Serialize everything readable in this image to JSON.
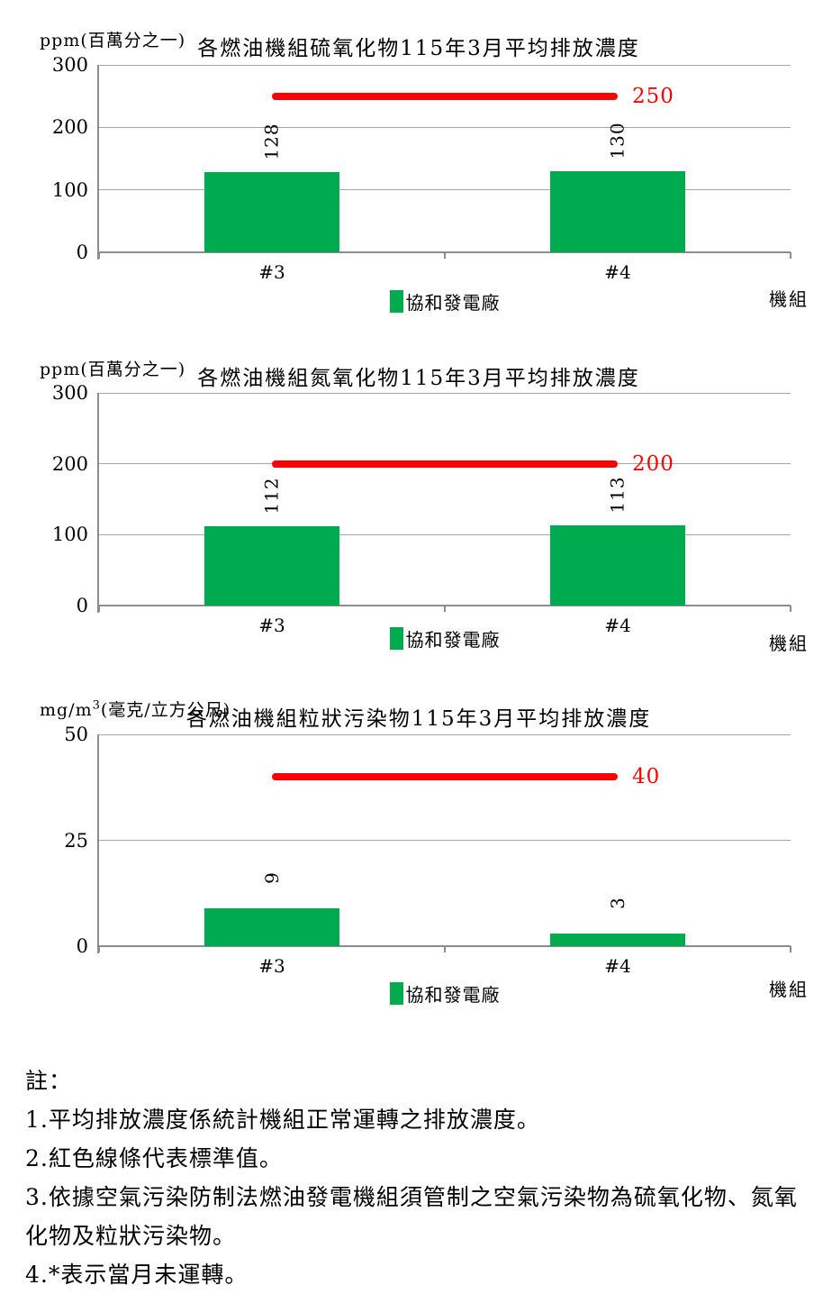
{
  "colors": {
    "bar_fill": "#00AB50",
    "standard_line": "#FF0000",
    "grid_line": "#A6A6A6",
    "axis_line": "#8C8C8C",
    "text": "#000000"
  },
  "chart_data": [
    {
      "type": "bar",
      "title": "各燃油機組硫氧化物115年3月平均排放濃度",
      "unit": {
        "pre": "ppm",
        "sup": "",
        "post": "(百萬分之一)"
      },
      "categories": [
        "#3",
        "#4"
      ],
      "series": [
        {
          "name": "協和發電廠",
          "values": [
            128,
            130
          ]
        }
      ],
      "value_labels": [
        "128",
        "130"
      ],
      "standard_line": {
        "value": 250,
        "label": "250"
      },
      "y_ticks": [
        0,
        100,
        200,
        300
      ],
      "ylim": [
        0,
        300
      ],
      "xlabel": "機組",
      "legend": {
        "name": "協和發電廠",
        "position": "bottom-center"
      },
      "grid": true
    },
    {
      "type": "bar",
      "title": "各燃油機組氮氧化物115年3月平均排放濃度",
      "unit": {
        "pre": "ppm",
        "sup": "",
        "post": "(百萬分之一)"
      },
      "categories": [
        "#3",
        "#4"
      ],
      "series": [
        {
          "name": "協和發電廠",
          "values": [
            112,
            113
          ]
        }
      ],
      "value_labels": [
        "112",
        "113"
      ],
      "standard_line": {
        "value": 200,
        "label": "200"
      },
      "y_ticks": [
        0,
        100,
        200,
        300
      ],
      "ylim": [
        0,
        300
      ],
      "xlabel": "機組",
      "legend": {
        "name": "協和發電廠",
        "position": "bottom-center"
      },
      "grid": true
    },
    {
      "type": "bar",
      "title": "各燃油機組粒狀污染物115年3月平均排放濃度",
      "unit": {
        "pre": "mg/m",
        "sup": "3",
        "post": "(毫克/立方公尺)"
      },
      "categories": [
        "#3",
        "#4"
      ],
      "series": [
        {
          "name": "協和發電廠",
          "values": [
            9,
            3
          ]
        }
      ],
      "value_labels": [
        "9",
        "3"
      ],
      "standard_line": {
        "value": 40,
        "label": "40"
      },
      "y_ticks": [
        0,
        25,
        50
      ],
      "ylim": [
        0,
        50
      ],
      "xlabel": "機組",
      "legend": {
        "name": "協和發電廠",
        "position": "bottom-center"
      },
      "grid": true
    }
  ],
  "notes": {
    "heading": "註：",
    "items": [
      "1.平均排放濃度係統計機組正常運轉之排放濃度。",
      "2.紅色線條代表標準值。",
      "3.依據空氣污染防制法燃油發電機組須管制之空氣污染物為硫氧化物、氮氧化物及粒狀污染物。",
      "4.*表示當月未運轉。"
    ]
  }
}
